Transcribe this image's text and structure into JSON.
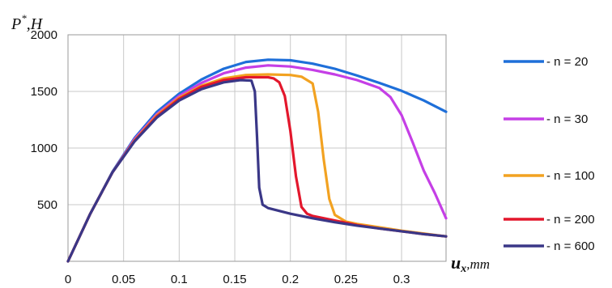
{
  "chart_data": {
    "type": "line",
    "title": "",
    "ylabel": {
      "main": "P",
      "sup": "*",
      "rest": ",H"
    },
    "xlabel": {
      "main": "u",
      "sub": "x",
      "rest": ",mm"
    },
    "xlim": [
      0,
      0.34
    ],
    "ylim": [
      0,
      2000
    ],
    "xticks": [
      0,
      0.05,
      0.1,
      0.15,
      0.2,
      0.25,
      0.3
    ],
    "xtick_labels": [
      "0",
      "0.05",
      "0.1",
      "0.15",
      "0.2",
      "0.25",
      "0.3"
    ],
    "yticks": [
      500,
      1000,
      1500,
      2000
    ],
    "ytick_labels": [
      "500",
      "1000",
      "1500",
      "2000"
    ],
    "grid": true,
    "legend_position": "right",
    "series": [
      {
        "name": "- n = 20",
        "color": "#1E6FD9",
        "x": [
          0,
          0.02,
          0.04,
          0.06,
          0.08,
          0.1,
          0.12,
          0.14,
          0.16,
          0.18,
          0.2,
          0.22,
          0.24,
          0.26,
          0.28,
          0.3,
          0.32,
          0.34
        ],
        "y": [
          0,
          420,
          790,
          1090,
          1320,
          1480,
          1605,
          1700,
          1760,
          1780,
          1775,
          1745,
          1700,
          1640,
          1575,
          1505,
          1420,
          1320
        ]
      },
      {
        "name": "- n = 30",
        "color": "#C53FE6",
        "x": [
          0,
          0.02,
          0.04,
          0.06,
          0.08,
          0.1,
          0.12,
          0.14,
          0.16,
          0.18,
          0.2,
          0.22,
          0.24,
          0.26,
          0.28,
          0.29,
          0.3,
          0.31,
          0.32,
          0.33,
          0.34
        ],
        "y": [
          0,
          420,
          785,
          1080,
          1300,
          1460,
          1575,
          1660,
          1710,
          1730,
          1720,
          1690,
          1650,
          1600,
          1530,
          1450,
          1290,
          1050,
          800,
          600,
          380
        ]
      },
      {
        "name": "- n = 100",
        "color": "#F2A221",
        "x": [
          0,
          0.02,
          0.04,
          0.06,
          0.08,
          0.1,
          0.12,
          0.14,
          0.16,
          0.18,
          0.2,
          0.21,
          0.22,
          0.225,
          0.23,
          0.235,
          0.24,
          0.25,
          0.26,
          0.28,
          0.3,
          0.32,
          0.34
        ],
        "y": [
          0,
          420,
          785,
          1070,
          1290,
          1445,
          1550,
          1615,
          1645,
          1650,
          1645,
          1630,
          1570,
          1320,
          900,
          550,
          410,
          350,
          330,
          300,
          270,
          245,
          220
        ]
      },
      {
        "name": "- n = 200",
        "color": "#E3172C",
        "x": [
          0,
          0.02,
          0.04,
          0.06,
          0.08,
          0.1,
          0.12,
          0.14,
          0.16,
          0.18,
          0.185,
          0.19,
          0.195,
          0.2,
          0.205,
          0.21,
          0.215,
          0.22,
          0.24,
          0.26,
          0.28,
          0.3,
          0.32,
          0.34
        ],
        "y": [
          0,
          420,
          785,
          1065,
          1280,
          1435,
          1540,
          1600,
          1625,
          1625,
          1615,
          1580,
          1460,
          1150,
          750,
          480,
          420,
          400,
          360,
          320,
          290,
          265,
          240,
          220
        ]
      },
      {
        "name": "- n = 600",
        "color": "#3A3787",
        "x": [
          0,
          0.02,
          0.04,
          0.06,
          0.08,
          0.1,
          0.12,
          0.14,
          0.155,
          0.165,
          0.168,
          0.17,
          0.172,
          0.175,
          0.18,
          0.2,
          0.22,
          0.24,
          0.26,
          0.28,
          0.3,
          0.32,
          0.34
        ],
        "y": [
          0,
          420,
          785,
          1060,
          1270,
          1420,
          1520,
          1580,
          1600,
          1595,
          1500,
          1100,
          650,
          500,
          470,
          420,
          380,
          345,
          315,
          290,
          265,
          240,
          220
        ]
      }
    ]
  }
}
